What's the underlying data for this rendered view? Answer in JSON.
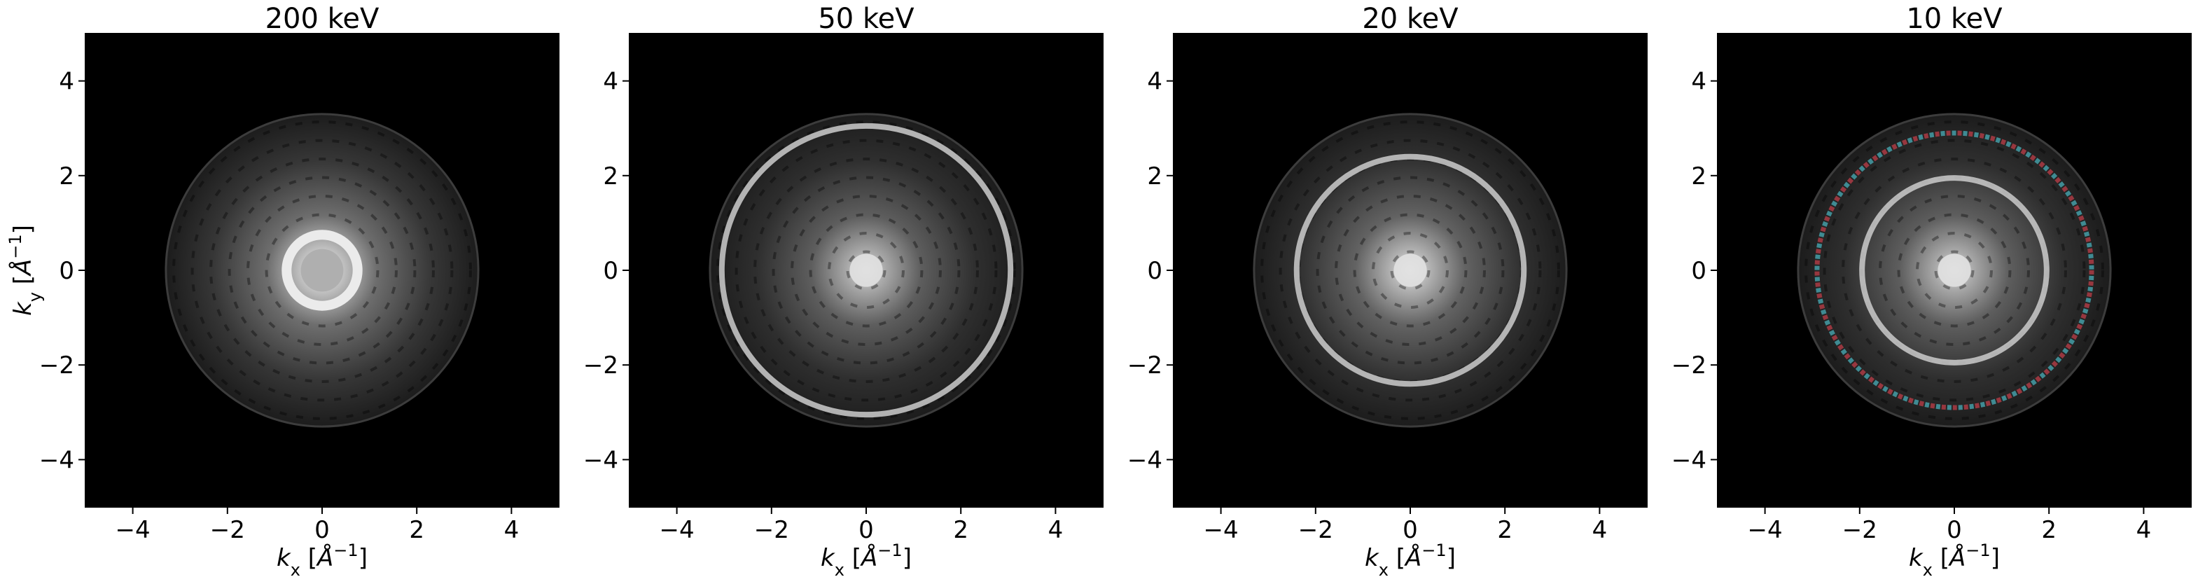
{
  "figure": {
    "xlabel": {
      "var": "k",
      "sub": "x",
      "unit_open": " [",
      "unit_var": "Å",
      "unit_sup": "−1",
      "unit_close": "]"
    },
    "ylabel": {
      "var": "k",
      "sub": "y",
      "unit_open": " [",
      "unit_var": "Å",
      "unit_sup": "−1",
      "unit_close": "]"
    },
    "colors": {
      "background": "#000000",
      "ring_red": "#b43c46",
      "ring_cyan": "#46a5af"
    }
  },
  "chart_data": [
    {
      "type": "heatmap",
      "title": "200 keV",
      "xlabel": "kx [Å−1]",
      "ylabel": "ky [Å−1]",
      "xlim": [
        -5,
        5
      ],
      "ylim": [
        -5,
        5
      ],
      "xticks": [
        -4,
        -2,
        0,
        2,
        4
      ],
      "yticks": [
        -4,
        -2,
        0,
        2,
        4
      ],
      "tick_labels": [
        "−4",
        "−2",
        "0",
        "2",
        "4"
      ],
      "colormap": "gray",
      "disk_radius": 3.3,
      "bright_ring_radius": null,
      "center_brightness": 1.0
    },
    {
      "type": "heatmap",
      "title": "50 keV",
      "xlabel": "kx [Å−1]",
      "ylabel": "",
      "xlim": [
        -5,
        5
      ],
      "ylim": [
        -5,
        5
      ],
      "xticks": [
        -4,
        -2,
        0,
        2,
        4
      ],
      "yticks": [
        -4,
        -2,
        0,
        2,
        4
      ],
      "tick_labels": [
        "−4",
        "−2",
        "0",
        "2",
        "4"
      ],
      "colormap": "gray",
      "disk_radius": 3.3,
      "bright_ring_radius": 3.05,
      "center_brightness": 0.85
    },
    {
      "type": "heatmap",
      "title": "20 keV",
      "xlabel": "kx [Å−1]",
      "ylabel": "",
      "xlim": [
        -5,
        5
      ],
      "ylim": [
        -5,
        5
      ],
      "xticks": [
        -4,
        -2,
        0,
        2,
        4
      ],
      "yticks": [
        -4,
        -2,
        0,
        2,
        4
      ],
      "tick_labels": [
        "−4",
        "−2",
        "0",
        "2",
        "4"
      ],
      "colormap": "gray",
      "disk_radius": 3.3,
      "bright_ring_radius": 2.4,
      "center_brightness": 0.9
    },
    {
      "type": "heatmap",
      "title": "10 keV",
      "xlabel": "kx [Å−1]",
      "ylabel": "",
      "xlim": [
        -5,
        5
      ],
      "ylim": [
        -5,
        5
      ],
      "xticks": [
        -4,
        -2,
        0,
        2,
        4
      ],
      "yticks": [
        -4,
        -2,
        0,
        2,
        4
      ],
      "tick_labels": [
        "−4",
        "−2",
        "0",
        "2",
        "4"
      ],
      "colormap": "gray",
      "disk_radius": 3.3,
      "bright_ring_radius": 1.95,
      "outer_color_ring_radius": 2.9,
      "center_brightness": 0.85
    }
  ]
}
